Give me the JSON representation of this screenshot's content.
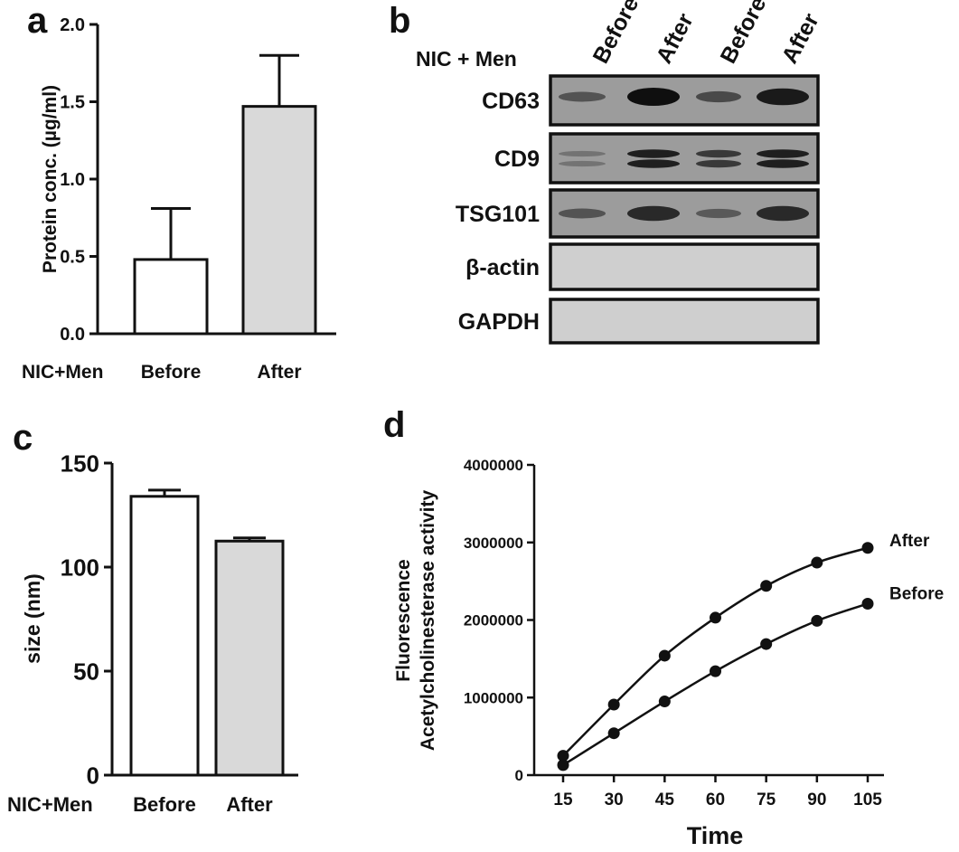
{
  "panels": {
    "a": "a",
    "b": "b",
    "c": "c",
    "d": "d"
  },
  "chart_data": [
    {
      "panel": "a",
      "type": "bar",
      "categories": [
        "Before",
        "After"
      ],
      "values": [
        0.48,
        1.47
      ],
      "errors": [
        0.33,
        0.33
      ],
      "bar_colors": [
        "#ffffff",
        "#d9d9d9"
      ],
      "ylabel": "Protein conc. (µg/ml)",
      "row_label": "NIC+Men",
      "ylim": [
        0,
        2.0
      ],
      "yticks": [
        "0.0",
        "0.5",
        "1.0",
        "1.5",
        "2.0"
      ]
    },
    {
      "panel": "c",
      "type": "bar",
      "categories": [
        "Before",
        "After"
      ],
      "values": [
        134,
        112.5
      ],
      "errors": [
        3,
        1.5
      ],
      "bar_colors": [
        "#ffffff",
        "#d9d9d9"
      ],
      "ylabel": "size (nm)",
      "row_label": "NIC+Men",
      "ylim": [
        0,
        150
      ],
      "yticks": [
        "0",
        "50",
        "100",
        "150"
      ]
    },
    {
      "panel": "d",
      "type": "line",
      "x": [
        15,
        30,
        45,
        60,
        75,
        90,
        105
      ],
      "xticks": [
        "15",
        "30",
        "45",
        "60",
        "75",
        "90",
        "105"
      ],
      "yticks": [
        "0",
        "1000000",
        "2000000",
        "3000000",
        "4000000"
      ],
      "ylim": [
        0,
        4000000
      ],
      "xlabel": "Time",
      "ylabel_lines": [
        "Fluorescence",
        "Acetylcholinesterase activity"
      ],
      "series": [
        {
          "name": "After",
          "values": [
            250000,
            910000,
            1540000,
            2030000,
            2440000,
            2740000,
            2930000
          ]
        },
        {
          "name": "Before",
          "values": [
            130000,
            540000,
            950000,
            1340000,
            1690000,
            1990000,
            2210000
          ]
        }
      ]
    }
  ],
  "blot": {
    "header_label": "NIC + Men",
    "lanes": [
      "Before",
      "After",
      "Before",
      "After"
    ],
    "rows": [
      {
        "label": "CD63",
        "bands": [
          0.35,
          1.0,
          0.45,
          0.9
        ],
        "double": false
      },
      {
        "label": "CD9",
        "bands": [
          0.05,
          0.85,
          0.6,
          0.85
        ],
        "double": true
      },
      {
        "label": "TSG101",
        "bands": [
          0.35,
          0.75,
          0.3,
          0.75
        ],
        "double": false
      },
      {
        "label": "β-actin",
        "bands": [
          0,
          0,
          0,
          0
        ],
        "double": false
      },
      {
        "label": "GAPDH",
        "bands": [
          0,
          0,
          0,
          0
        ],
        "double": false
      }
    ]
  }
}
